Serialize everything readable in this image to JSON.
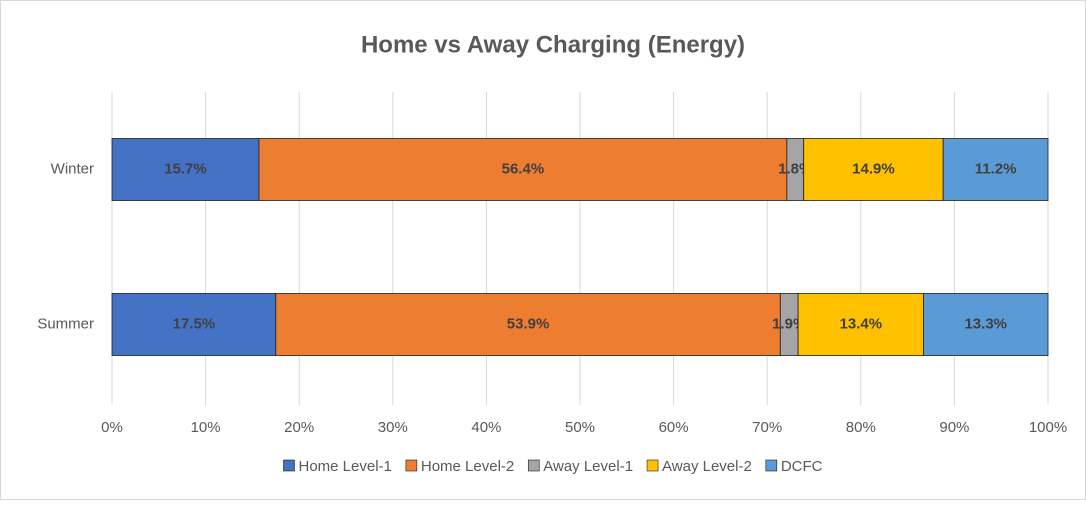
{
  "chart_data": {
    "type": "stacked-bar-horizontal",
    "title": "Home vs Away Charging (Energy)",
    "categories": [
      "Winter",
      "Summer"
    ],
    "series": [
      {
        "name": "Home Level-1",
        "color": "#4472c4",
        "values": [
          15.7,
          17.5
        ],
        "value_labels": [
          "15.7%",
          "17.5%"
        ]
      },
      {
        "name": "Home Level-2",
        "color": "#ed7d31",
        "values": [
          56.4,
          53.9
        ],
        "value_labels": [
          "56.4%",
          "53.9%"
        ]
      },
      {
        "name": "Away Level-1",
        "color": "#a5a5a5",
        "values": [
          1.8,
          1.9
        ],
        "value_labels": [
          "1.8%",
          "1.9%"
        ]
      },
      {
        "name": "Away Level-2",
        "color": "#ffc000",
        "values": [
          14.9,
          13.4
        ],
        "value_labels": [
          "14.9%",
          "13.4%"
        ]
      },
      {
        "name": "DCFC",
        "color": "#5b9bd5",
        "values": [
          11.2,
          13.3
        ],
        "value_labels": [
          "11.2%",
          "13.3%"
        ]
      }
    ],
    "xlim": [
      0,
      100
    ],
    "xticks": [
      {
        "value": 0,
        "label": "0%"
      },
      {
        "value": 10,
        "label": "10%"
      },
      {
        "value": 20,
        "label": "20%"
      },
      {
        "value": 30,
        "label": "30%"
      },
      {
        "value": 40,
        "label": "40%"
      },
      {
        "value": 50,
        "label": "50%"
      },
      {
        "value": 60,
        "label": "60%"
      },
      {
        "value": 70,
        "label": "70%"
      },
      {
        "value": 80,
        "label": "80%"
      },
      {
        "value": 90,
        "label": "90%"
      },
      {
        "value": 100,
        "label": "100%"
      }
    ],
    "grid": true,
    "legend": "bottom"
  }
}
